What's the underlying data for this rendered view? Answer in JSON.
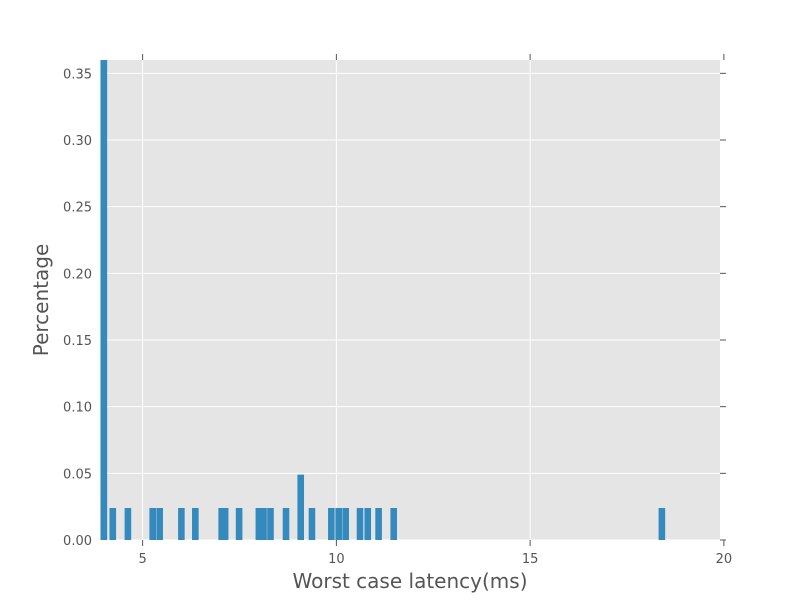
{
  "chart_data": {
    "type": "bar",
    "title": "",
    "xlabel": "Worst case latency(ms)",
    "ylabel": "Percentage",
    "xlim": [
      3.9,
      19.9
    ],
    "ylim": [
      0,
      0.36
    ],
    "xticks": [
      "5",
      "10",
      "15",
      "20"
    ],
    "yticks": [
      "0.00",
      "0.05",
      "0.10",
      "0.15",
      "0.20",
      "0.25",
      "0.30",
      "0.35"
    ],
    "bin_width": 0.17,
    "grid": true,
    "background_color": "#e5e5e5",
    "bar_color": "#348abd",
    "values": [
      {
        "x": 4.0,
        "y": 0.36
      },
      {
        "x": 4.23,
        "y": 0.024
      },
      {
        "x": 4.62,
        "y": 0.024
      },
      {
        "x": 5.26,
        "y": 0.024
      },
      {
        "x": 5.44,
        "y": 0.024
      },
      {
        "x": 6.0,
        "y": 0.024
      },
      {
        "x": 6.36,
        "y": 0.024
      },
      {
        "x": 7.04,
        "y": 0.024
      },
      {
        "x": 7.13,
        "y": 0.024
      },
      {
        "x": 7.49,
        "y": 0.024
      },
      {
        "x": 8.0,
        "y": 0.024
      },
      {
        "x": 8.12,
        "y": 0.024
      },
      {
        "x": 8.3,
        "y": 0.024
      },
      {
        "x": 8.7,
        "y": 0.024
      },
      {
        "x": 9.08,
        "y": 0.049
      },
      {
        "x": 9.37,
        "y": 0.024
      },
      {
        "x": 9.87,
        "y": 0.024
      },
      {
        "x": 10.06,
        "y": 0.024
      },
      {
        "x": 10.24,
        "y": 0.024
      },
      {
        "x": 10.61,
        "y": 0.024
      },
      {
        "x": 10.81,
        "y": 0.024
      },
      {
        "x": 11.09,
        "y": 0.024
      },
      {
        "x": 11.48,
        "y": 0.024
      },
      {
        "x": 18.4,
        "y": 0.024
      }
    ]
  }
}
